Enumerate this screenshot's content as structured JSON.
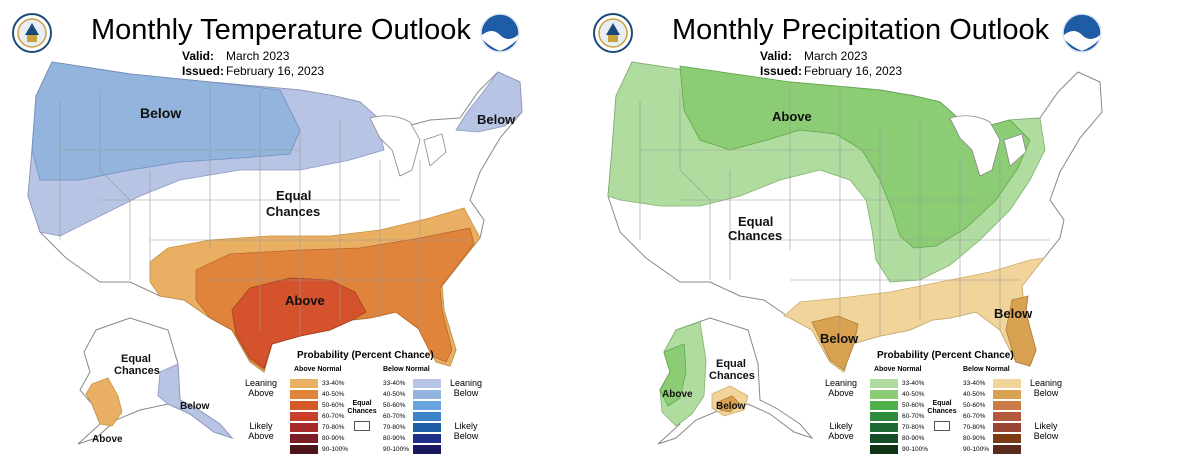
{
  "colors": {
    "above_33": "#e9b064",
    "above_40": "#e0843c",
    "above_50": "#d45a2a",
    "above_60": "#c8402c",
    "above_70": "#a72a2a",
    "above_80": "#7d1e26",
    "above_90": "#4d1517",
    "below_33": "#b8c4e4",
    "below_40": "#93b4dc",
    "below_50": "#6aa4dc",
    "below_60": "#3d83c8",
    "below_70": "#1e5da6",
    "below_80": "#1f2f8a",
    "below_90": "#18195e",
    "wet_33": "#b0dca0",
    "wet_40": "#8ccc74",
    "wet_50": "#4db048",
    "wet_60": "#2e8c3c",
    "wet_70": "#1e6a34",
    "wet_80": "#154d24",
    "wet_90": "#0f3315",
    "dry_33": "#f0d49a",
    "dry_40": "#d9a152",
    "dry_50": "#c87d44",
    "dry_60": "#b45a3c",
    "dry_70": "#984634",
    "dry_80": "#7a3a12",
    "dry_90": "#5a2a1c"
  },
  "temperature": {
    "title": "Monthly Temperature Outlook",
    "valid_key": "Valid:",
    "valid_value": "March 2023",
    "issued_key": "Issued:",
    "issued_value": "February 16, 2023",
    "labels": {
      "below_nw": "Below",
      "below_ne": "Below",
      "equal_1": "Equal",
      "equal_2": "Chances",
      "above": "Above",
      "ak_equal_1": "Equal",
      "ak_equal_2": "Chances",
      "ak_above": "Above",
      "ak_below": "Below"
    },
    "legend": {
      "title": "Probability (Percent Chance)",
      "above_head": "Above Normal",
      "below_head": "Below Normal",
      "leaning_left_1": "Leaning",
      "leaning_left_2": "Above",
      "likely_left_1": "Likely",
      "likely_left_2": "Above",
      "leaning_right_1": "Leaning",
      "leaning_right_2": "Below",
      "likely_right_1": "Likely",
      "likely_right_2": "Below",
      "ec_1": "Equal",
      "ec_2": "Chances",
      "ranges": [
        "33-40%",
        "40-50%",
        "50-60%",
        "60-70%",
        "70-80%",
        "80-90%",
        "90-100%"
      ]
    }
  },
  "precipitation": {
    "title": "Monthly Precipitation Outlook",
    "valid_key": "Valid:",
    "valid_value": "March 2023",
    "issued_key": "Issued:",
    "issued_value": "February 16, 2023",
    "labels": {
      "above": "Above",
      "equal_1": "Equal",
      "equal_2": "Chances",
      "below_tx": "Below",
      "below_fl": "Below",
      "ak_equal_1": "Equal",
      "ak_equal_2": "Chances",
      "ak_above": "Above",
      "ak_below": "Below"
    },
    "legend": {
      "title": "Probability (Percent Chance)",
      "above_head": "Above Normal",
      "below_head": "Below Normal",
      "leaning_left_1": "Leaning",
      "leaning_left_2": "Above",
      "likely_left_1": "Likely",
      "likely_left_2": "Above",
      "leaning_right_1": "Leaning",
      "leaning_right_2": "Below",
      "likely_right_1": "Likely",
      "likely_right_2": "Below",
      "ec_1": "Equal",
      "ec_2": "Chances",
      "ranges": [
        "33-40%",
        "40-50%",
        "50-60%",
        "60-70%",
        "70-80%",
        "80-90%",
        "90-100%"
      ]
    }
  }
}
